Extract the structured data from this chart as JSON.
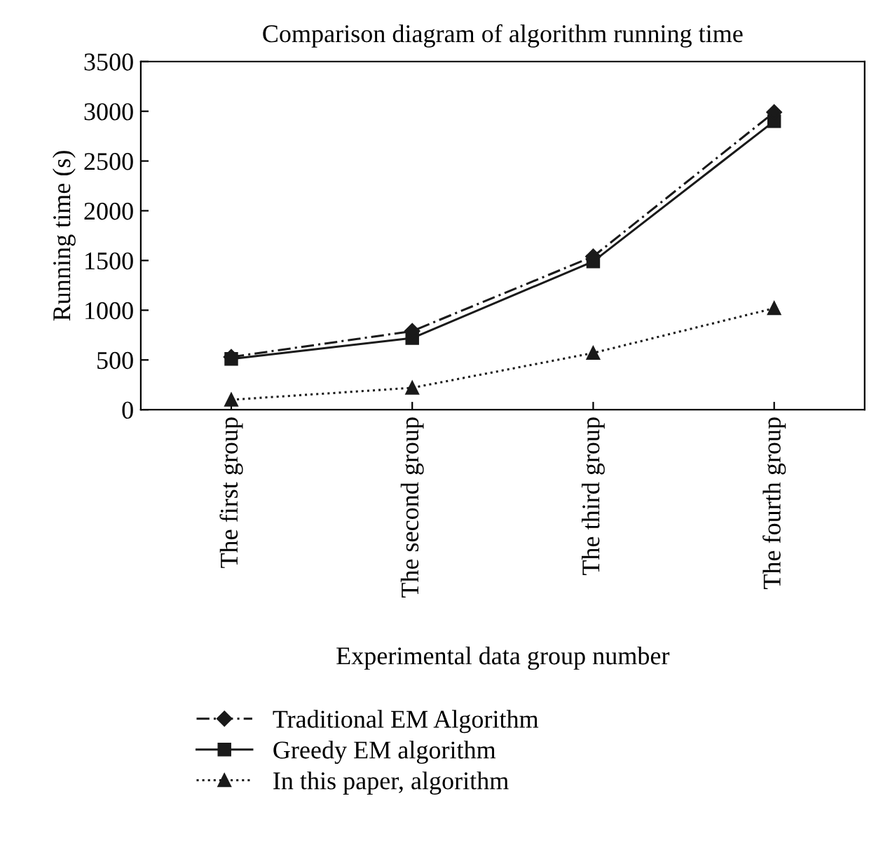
{
  "chart_data": {
    "type": "line",
    "title": "Comparison diagram of algorithm running time",
    "xlabel": "Experimental data group number",
    "ylabel": "Running time (s)",
    "categories": [
      "The first group",
      "The second group",
      "The third group",
      "The fourth group"
    ],
    "series": [
      {
        "name": "Traditional EM Algorithm",
        "color": "#1a1a1a",
        "marker": "diamond",
        "line_style": "dashed",
        "values": [
          530,
          790,
          1540,
          2990
        ]
      },
      {
        "name": "Greedy EM algorithm",
        "color": "#1a1a1a",
        "marker": "square",
        "line_style": "solid",
        "values": [
          510,
          720,
          1490,
          2900
        ]
      },
      {
        "name": "In this paper, algorithm",
        "color": "#1a1a1a",
        "marker": "triangle",
        "line_style": "dotted",
        "values": [
          100,
          220,
          570,
          1020
        ]
      }
    ],
    "ylim": [
      0,
      3500
    ],
    "yticks": [
      0,
      500,
      1000,
      1500,
      2000,
      2500,
      3000,
      3500
    ],
    "grid": false,
    "legend": "bottom"
  }
}
